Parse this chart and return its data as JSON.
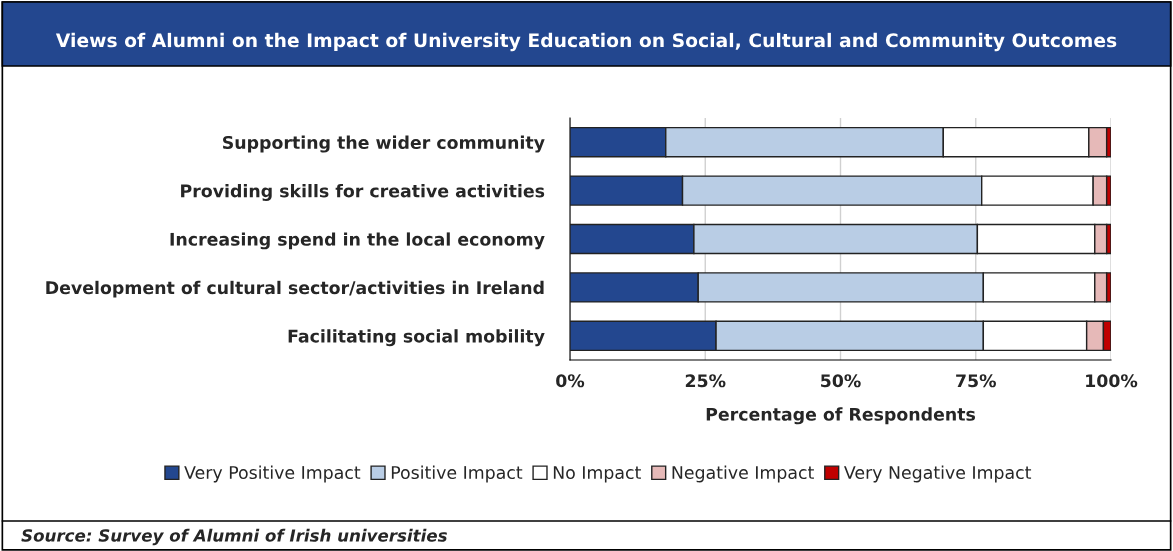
{
  "chart_data": {
    "type": "bar",
    "orientation": "horizontal",
    "stacked": true,
    "title": "Views of Alumni on the Impact of University Education on Social, Cultural and Community Outcomes",
    "xlabel": "Percentage of Respondents",
    "categories": [
      "Supporting the wider community",
      "Providing skills for creative activities",
      "Increasing spend in the local economy",
      "Development of cultural sector/activities in Ireland",
      "Facilitating social mobility"
    ],
    "series": [
      {
        "name": "Very Positive Impact",
        "color": "#23478f",
        "values": [
          17.7,
          20.8,
          22.9,
          23.7,
          27.0
        ]
      },
      {
        "name": "Positive Impact",
        "color": "#b9cde5",
        "values": [
          51.3,
          55.3,
          52.4,
          52.7,
          49.4
        ]
      },
      {
        "name": "No Impact",
        "color": "#ffffff",
        "values": [
          26.9,
          20.6,
          21.7,
          20.6,
          19.1
        ]
      },
      {
        "name": "Negative Impact",
        "color": "#e6b9b8",
        "values": [
          3.3,
          2.5,
          2.2,
          2.2,
          3.1
        ]
      },
      {
        "name": "Very Negative Impact",
        "color": "#c00000",
        "values": [
          0.8,
          0.8,
          0.8,
          0.8,
          1.4
        ]
      }
    ],
    "xlim": [
      0,
      100
    ],
    "xticks": [
      {
        "value": 0,
        "label": "0%"
      },
      {
        "value": 25,
        "label": "25%"
      },
      {
        "value": 50,
        "label": "50%"
      },
      {
        "value": 75,
        "label": "75%"
      },
      {
        "value": 100,
        "label": "100%"
      }
    ],
    "grid": "x",
    "legend": "bottom",
    "annotations": [
      "Source: Survey of Alumni of Irish universities"
    ]
  }
}
